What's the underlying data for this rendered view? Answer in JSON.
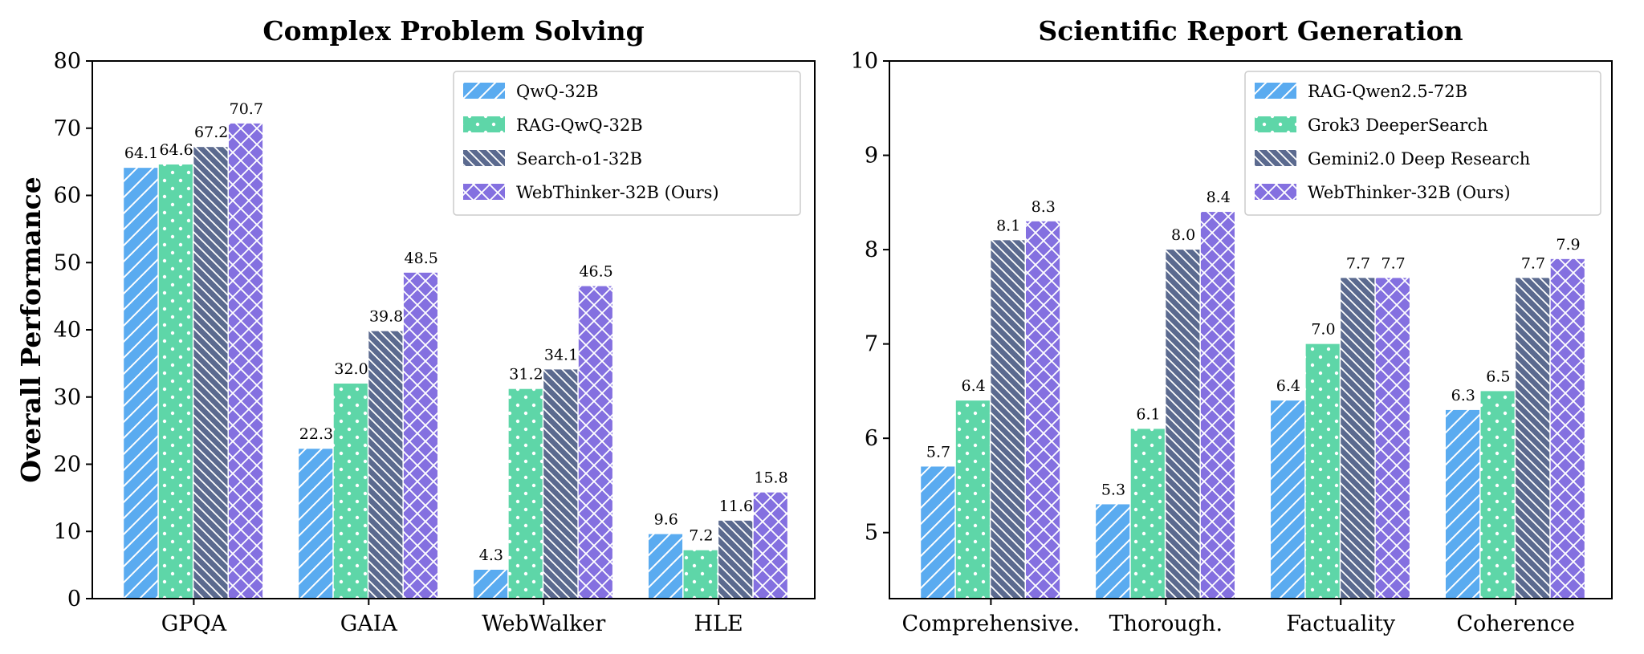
{
  "colors": {
    "s0": "#5aabf0",
    "s1": "#5ed6a8",
    "s2": "#5b6a8f",
    "s3": "#8470e0"
  },
  "patterns": [
    "diagonal-forward",
    "dots",
    "diagonal-back",
    "crosshatch"
  ],
  "chart_data": [
    {
      "type": "bar",
      "title": "Complex Problem Solving",
      "ylabel": "Overall Performance",
      "xlabel": "",
      "categories": [
        "GPQA",
        "GAIA",
        "WebWalker",
        "HLE"
      ],
      "ylim": [
        0,
        80
      ],
      "yticks": [
        0,
        10,
        20,
        30,
        40,
        50,
        60,
        70,
        80
      ],
      "legend_placement": "top-right",
      "series": [
        {
          "name": "QwQ-32B",
          "values": [
            64.1,
            22.3,
            4.3,
            9.6
          ]
        },
        {
          "name": "RAG-QwQ-32B",
          "values": [
            64.6,
            32.0,
            31.2,
            7.2
          ]
        },
        {
          "name": "Search-o1-32B",
          "values": [
            67.2,
            39.8,
            34.1,
            11.6
          ]
        },
        {
          "name": "WebThinker-32B (Ours)",
          "values": [
            70.7,
            48.5,
            46.5,
            15.8
          ]
        }
      ]
    },
    {
      "type": "bar",
      "title": "Scientific Report Generation",
      "ylabel": "",
      "xlabel": "",
      "categories": [
        "Comprehensive.",
        "Thorough.",
        "Factuality",
        "Coherence"
      ],
      "ylim": [
        4.3,
        10
      ],
      "yticks": [
        5,
        6,
        7,
        8,
        9,
        10
      ],
      "legend_placement": "top-right",
      "series": [
        {
          "name": "RAG-Qwen2.5-72B",
          "values": [
            5.7,
            5.3,
            6.4,
            6.3
          ]
        },
        {
          "name": "Grok3 DeeperSearch",
          "values": [
            6.4,
            6.1,
            7.0,
            6.5
          ]
        },
        {
          "name": "Gemini2.0 Deep Research",
          "values": [
            8.1,
            8.0,
            7.7,
            7.7
          ]
        },
        {
          "name": "WebThinker-32B (Ours)",
          "values": [
            8.3,
            8.4,
            7.7,
            7.9
          ]
        }
      ]
    }
  ]
}
